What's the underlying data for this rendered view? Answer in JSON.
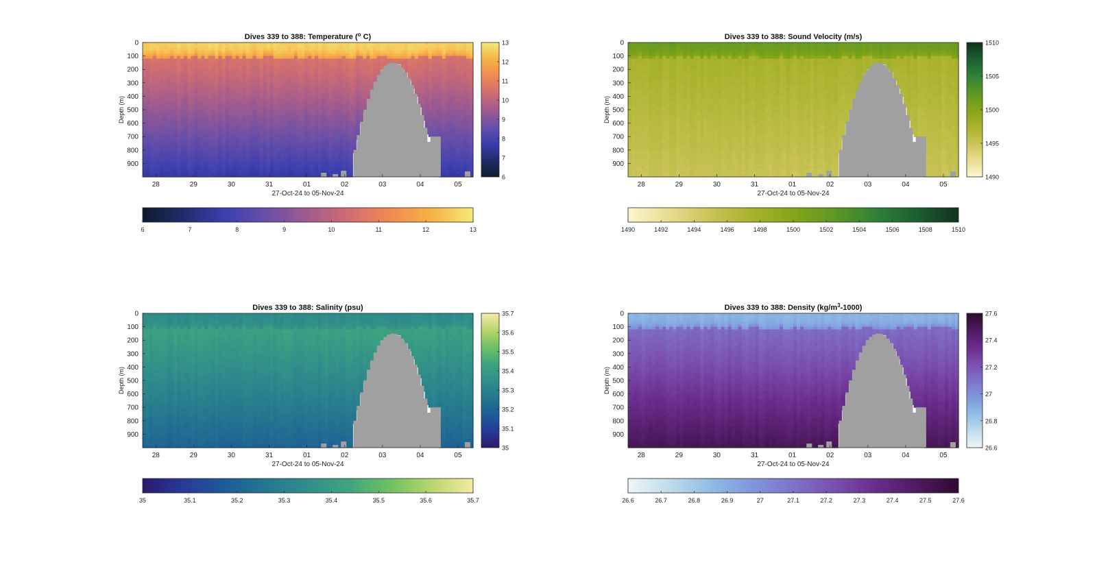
{
  "chart_data": [
    {
      "type": "heatmap",
      "title": "Dives 339 to 388: Temperature (° C)",
      "title_parts": [
        "Dives 339 to 388: Temperature (",
        "o",
        " C)"
      ],
      "title_sup": "o",
      "xlabel": "27-Oct-24 to 05-Nov-24",
      "ylabel": "Depth (m)",
      "x_tick_labels": [
        "28",
        "29",
        "30",
        "31",
        "01",
        "02",
        "03",
        "04",
        "05"
      ],
      "y_tick_labels": [
        "0",
        "100",
        "200",
        "300",
        "400",
        "500",
        "600",
        "700",
        "800",
        "900"
      ],
      "y_ticks": [
        0,
        100,
        200,
        300,
        400,
        500,
        600,
        700,
        800,
        900
      ],
      "ylim": [
        0,
        1000
      ],
      "y_reversed": true,
      "x_range_days": [
        "27-Oct-24",
        "05-Nov-24"
      ],
      "colorbar": {
        "min": 6,
        "max": 13,
        "side_ticks": [
          "6",
          "7",
          "8",
          "9",
          "10",
          "11",
          "12",
          "13"
        ],
        "bottom_ticks": [
          "6",
          "7",
          "8",
          "9",
          "10",
          "11",
          "12",
          "13"
        ],
        "colors": [
          "#0d1b2e",
          "#232c6b",
          "#3b3fb0",
          "#6a4fa8",
          "#a05b8f",
          "#d06e71",
          "#f08a52",
          "#f6b345",
          "#f3e97a"
        ]
      },
      "profile": {
        "surface": 12.6,
        "thermocline": 10.6,
        "deep": 7.6
      },
      "colors": {
        "bathymetry": "#a0a0a0"
      }
    },
    {
      "type": "heatmap",
      "title": "Dives 339 to 388: Sound Velocity (m/s)",
      "title_parts": [
        "Dives 339 to 388: Sound Velocity (m/s)",
        "",
        ""
      ],
      "title_sup": "",
      "xlabel": "27-Oct-24 to 05-Nov-24",
      "ylabel": "Depth (m)",
      "x_tick_labels": [
        "28",
        "29",
        "30",
        "31",
        "01",
        "02",
        "03",
        "04",
        "05"
      ],
      "y_tick_labels": [
        "0",
        "100",
        "200",
        "300",
        "400",
        "500",
        "600",
        "700",
        "800",
        "900"
      ],
      "y_ticks": [
        0,
        100,
        200,
        300,
        400,
        500,
        600,
        700,
        800,
        900
      ],
      "ylim": [
        0,
        1000
      ],
      "y_reversed": true,
      "x_range_days": [
        "27-Oct-24",
        "05-Nov-24"
      ],
      "colorbar": {
        "min": 1490,
        "max": 1510,
        "side_ticks": [
          "1490",
          "1495",
          "1500",
          "1505",
          "1510"
        ],
        "bottom_ticks": [
          "1490",
          "1492",
          "1494",
          "1496",
          "1498",
          "1500",
          "1502",
          "1504",
          "1506",
          "1508",
          "1510"
        ],
        "colors": [
          "#fbf6cf",
          "#e7dc91",
          "#c9c356",
          "#a8b22c",
          "#86a51a",
          "#5d9722",
          "#2f8139",
          "#1c5e30",
          "#10321e"
        ]
      },
      "profile": {
        "surface": 1501.5,
        "thermocline": 1497.5,
        "deep": 1495.0
      },
      "colors": {
        "bathymetry": "#a0a0a0"
      }
    },
    {
      "type": "heatmap",
      "title": "Dives 339 to 388: Salinity (psu)",
      "title_parts": [
        "Dives 339 to 388: Salinity (psu)",
        "",
        ""
      ],
      "title_sup": "",
      "xlabel": "27-Oct-24 to 05-Nov-24",
      "ylabel": "Depth (m)",
      "x_tick_labels": [
        "28",
        "29",
        "30",
        "31",
        "01",
        "02",
        "03",
        "04",
        "05"
      ],
      "y_tick_labels": [
        "0",
        "100",
        "200",
        "300",
        "400",
        "500",
        "600",
        "700",
        "800",
        "900"
      ],
      "y_ticks": [
        0,
        100,
        200,
        300,
        400,
        500,
        600,
        700,
        800,
        900
      ],
      "ylim": [
        0,
        1000
      ],
      "y_reversed": true,
      "x_range_days": [
        "27-Oct-24",
        "05-Nov-24"
      ],
      "colorbar": {
        "min": 35,
        "max": 35.7,
        "side_ticks": [
          "35",
          "35.1",
          "35.2",
          "35.3",
          "35.4",
          "35.5",
          "35.6",
          "35.7"
        ],
        "bottom_ticks": [
          "35",
          "35.1",
          "35.2",
          "35.3",
          "35.4",
          "35.5",
          "35.6",
          "35.7"
        ],
        "colors": [
          "#2b1a6e",
          "#283a98",
          "#1d5c98",
          "#25778f",
          "#318e8a",
          "#3fa57e",
          "#70c064",
          "#b8d76b",
          "#f6eaa6"
        ]
      },
      "profile": {
        "surface": 35.34,
        "thermocline": 35.42,
        "deep": 35.2
      },
      "colors": {
        "bathymetry": "#a0a0a0"
      }
    },
    {
      "type": "heatmap",
      "title": "Dives 339 to 388: Density (kg/m³-1000)",
      "title_parts": [
        "Dives 339 to 388: Density (kg/m",
        "3",
        "-1000)"
      ],
      "title_sup": "3",
      "xlabel": "27-Oct-24 to 05-Nov-24",
      "ylabel": "Depth (m)",
      "x_tick_labels": [
        "28",
        "29",
        "30",
        "31",
        "01",
        "02",
        "03",
        "04",
        "05"
      ],
      "y_tick_labels": [
        "0",
        "100",
        "200",
        "300",
        "400",
        "500",
        "600",
        "700",
        "800",
        "900"
      ],
      "y_ticks": [
        0,
        100,
        200,
        300,
        400,
        500,
        600,
        700,
        800,
        900
      ],
      "ylim": [
        0,
        1000
      ],
      "y_reversed": true,
      "x_range_days": [
        "27-Oct-24",
        "05-Nov-24"
      ],
      "colorbar": {
        "min": 26.6,
        "max": 27.6,
        "side_ticks": [
          "26.6",
          "26.8",
          "27",
          "27.2",
          "27.4",
          "27.6"
        ],
        "side_tick_values": [
          26.6,
          26.8,
          27.0,
          27.2,
          27.4,
          27.6
        ],
        "bottom_ticks": [
          "26.6",
          "26.7",
          "26.8",
          "26.9",
          "27",
          "27.1",
          "27.2",
          "27.3",
          "27.4",
          "27.5",
          "27.6"
        ],
        "colors": [
          "#eef6f8",
          "#bfdcea",
          "#8fbde6",
          "#7f97dc",
          "#7f72c8",
          "#7a4fae",
          "#6a2c8a",
          "#4e1a60",
          "#2e0b2e"
        ]
      },
      "profile": {
        "surface": 26.88,
        "thermocline": 27.12,
        "deep": 27.5
      },
      "colors": {
        "bathymetry": "#a0a0a0"
      }
    }
  ]
}
